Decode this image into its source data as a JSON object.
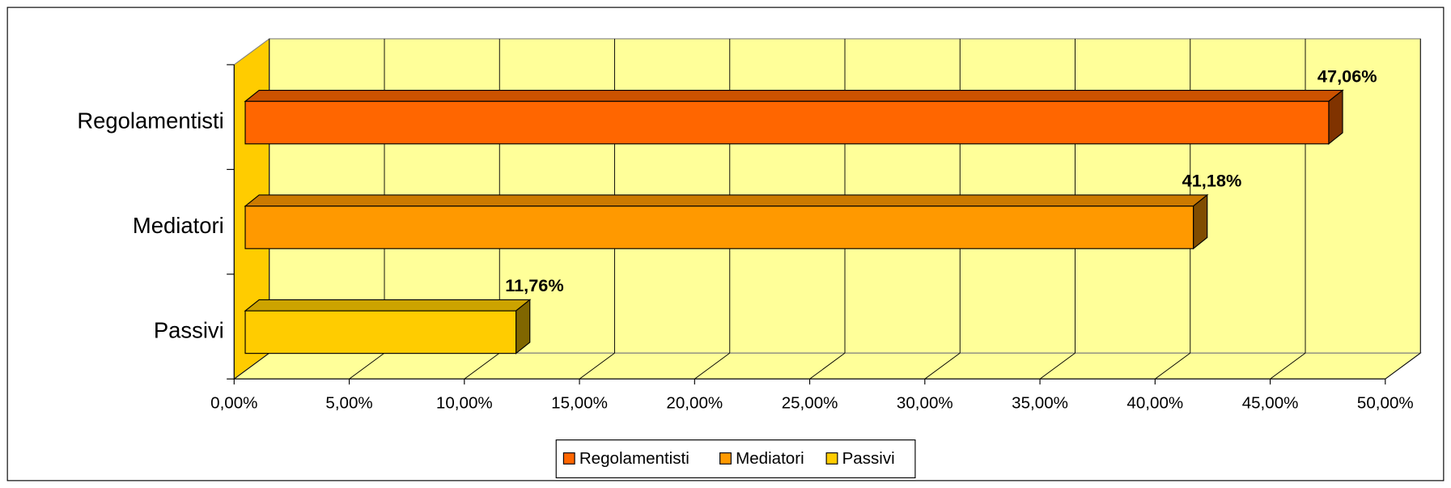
{
  "chart_data": {
    "type": "bar3d_horizontal",
    "categories": [
      "Regolamentisti",
      "Mediatori",
      "Passivi"
    ],
    "values": [
      47.06,
      41.18,
      11.76
    ],
    "value_labels": [
      "47,06%",
      "41,18%",
      "11,76%"
    ],
    "colors": [
      "#ff6600",
      "#ff9900",
      "#ffcc00"
    ],
    "xlim": [
      0,
      50
    ],
    "xticks": [
      {
        "value": 0,
        "label": "0,00%"
      },
      {
        "value": 5,
        "label": "5,00%"
      },
      {
        "value": 10,
        "label": "10,00%"
      },
      {
        "value": 15,
        "label": "15,00%"
      },
      {
        "value": 20,
        "label": "20,00%"
      },
      {
        "value": 25,
        "label": "25,00%"
      },
      {
        "value": 30,
        "label": "30,00%"
      },
      {
        "value": 35,
        "label": "35,00%"
      },
      {
        "value": 40,
        "label": "40,00%"
      },
      {
        "value": 45,
        "label": "45,00%"
      },
      {
        "value": 50,
        "label": "50,00%"
      }
    ],
    "grid": true,
    "legend": "bottom"
  }
}
